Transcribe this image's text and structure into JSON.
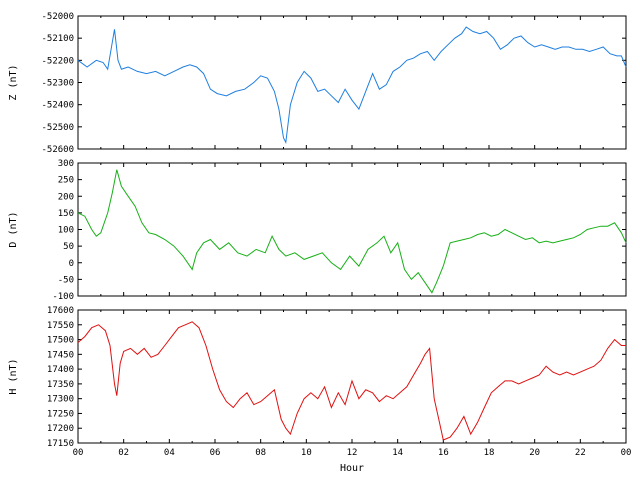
{
  "chart_data": [
    {
      "type": "line",
      "ylabel": "Z (nT)",
      "ylim": [
        -52600,
        -52000
      ],
      "yticks": [
        -52000,
        -52100,
        -52200,
        -52300,
        -52400,
        -52500,
        -52600
      ],
      "xlim": [
        0,
        24
      ],
      "xticks": [
        "00",
        "02",
        "04",
        "06",
        "08",
        "10",
        "12",
        "14",
        "16",
        "18",
        "20",
        "22",
        "00"
      ],
      "color": "#1f7fe0",
      "x": [
        0,
        0.4,
        0.8,
        1.1,
        1.3,
        1.45,
        1.6,
        1.75,
        1.9,
        2.2,
        2.6,
        3.0,
        3.4,
        3.8,
        4.2,
        4.6,
        4.9,
        5.2,
        5.5,
        5.8,
        6.1,
        6.5,
        6.9,
        7.3,
        7.7,
        8.0,
        8.3,
        8.6,
        8.8,
        9.0,
        9.1,
        9.3,
        9.6,
        9.9,
        10.2,
        10.5,
        10.8,
        11.1,
        11.4,
        11.7,
        12.0,
        12.3,
        12.6,
        12.9,
        13.2,
        13.5,
        13.8,
        14.1,
        14.4,
        14.7,
        15.0,
        15.3,
        15.6,
        15.9,
        16.2,
        16.5,
        16.8,
        17.0,
        17.3,
        17.6,
        17.9,
        18.2,
        18.5,
        18.8,
        19.1,
        19.4,
        19.7,
        20.0,
        20.3,
        20.6,
        20.9,
        21.2,
        21.5,
        21.8,
        22.1,
        22.4,
        22.7,
        23.0,
        23.3,
        23.6,
        23.8,
        24.0
      ],
      "values": [
        -52200,
        -52230,
        -52200,
        -52210,
        -52240,
        -52150,
        -52060,
        -52200,
        -52240,
        -52230,
        -52250,
        -52260,
        -52250,
        -52270,
        -52250,
        -52230,
        -52220,
        -52230,
        -52260,
        -52330,
        -52350,
        -52360,
        -52340,
        -52330,
        -52300,
        -52270,
        -52280,
        -52340,
        -52420,
        -52550,
        -52570,
        -52400,
        -52300,
        -52250,
        -52280,
        -52340,
        -52330,
        -52360,
        -52390,
        -52330,
        -52380,
        -52420,
        -52340,
        -52260,
        -52330,
        -52310,
        -52250,
        -52230,
        -52200,
        -52190,
        -52170,
        -52160,
        -52200,
        -52160,
        -52130,
        -52100,
        -52080,
        -52050,
        -52070,
        -52080,
        -52070,
        -52100,
        -52150,
        -52130,
        -52100,
        -52090,
        -52120,
        -52140,
        -52130,
        -52140,
        -52150,
        -52140,
        -52140,
        -52150,
        -52150,
        -52160,
        -52150,
        -52140,
        -52170,
        -52180,
        -52180,
        -52230
      ]
    },
    {
      "type": "line",
      "ylabel": "D (nT)",
      "ylim": [
        -100,
        300
      ],
      "yticks": [
        300,
        250,
        200,
        150,
        100,
        50,
        0,
        -50,
        -100
      ],
      "xlim": [
        0,
        24
      ],
      "xticks": [
        "00",
        "02",
        "04",
        "06",
        "08",
        "10",
        "12",
        "14",
        "16",
        "18",
        "20",
        "22",
        "00"
      ],
      "color": "#17b017",
      "x": [
        0,
        0.3,
        0.6,
        0.8,
        1.0,
        1.3,
        1.5,
        1.7,
        1.9,
        2.2,
        2.5,
        2.8,
        3.1,
        3.4,
        3.8,
        4.2,
        4.6,
        5.0,
        5.2,
        5.5,
        5.8,
        6.2,
        6.6,
        7.0,
        7.4,
        7.8,
        8.2,
        8.5,
        8.8,
        9.1,
        9.5,
        9.9,
        10.3,
        10.7,
        11.1,
        11.5,
        11.9,
        12.3,
        12.7,
        13.1,
        13.4,
        13.7,
        14.0,
        14.3,
        14.6,
        14.9,
        15.2,
        15.5,
        15.7,
        16.0,
        16.3,
        16.6,
        16.9,
        17.2,
        17.5,
        17.8,
        18.1,
        18.4,
        18.7,
        19.0,
        19.3,
        19.6,
        19.9,
        20.2,
        20.5,
        20.8,
        21.1,
        21.4,
        21.7,
        22.0,
        22.3,
        22.6,
        22.9,
        23.2,
        23.5,
        23.8,
        24.0
      ],
      "values": [
        150,
        140,
        100,
        80,
        90,
        150,
        210,
        280,
        230,
        200,
        170,
        120,
        90,
        85,
        70,
        50,
        20,
        -20,
        30,
        60,
        70,
        40,
        60,
        30,
        20,
        40,
        30,
        80,
        40,
        20,
        30,
        10,
        20,
        30,
        0,
        -20,
        20,
        -10,
        40,
        60,
        80,
        30,
        60,
        -20,
        -50,
        -30,
        -60,
        -90,
        -60,
        -10,
        60,
        65,
        70,
        75,
        85,
        90,
        80,
        85,
        100,
        90,
        80,
        70,
        75,
        60,
        65,
        60,
        65,
        70,
        75,
        85,
        100,
        105,
        110,
        110,
        120,
        90,
        60
      ]
    },
    {
      "type": "line",
      "ylabel": "H (nT)",
      "xlabel": "Hour",
      "ylim": [
        17150,
        17600
      ],
      "yticks": [
        17600,
        17550,
        17500,
        17450,
        17400,
        17350,
        17300,
        17250,
        17200,
        17150
      ],
      "xlim": [
        0,
        24
      ],
      "xticks": [
        "00",
        "02",
        "04",
        "06",
        "08",
        "10",
        "12",
        "14",
        "16",
        "18",
        "20",
        "22",
        "00"
      ],
      "color": "#e01010",
      "x": [
        0,
        0.3,
        0.6,
        0.9,
        1.2,
        1.4,
        1.6,
        1.7,
        1.85,
        2.0,
        2.3,
        2.6,
        2.9,
        3.2,
        3.5,
        3.8,
        4.1,
        4.4,
        4.7,
        5.0,
        5.3,
        5.6,
        5.9,
        6.2,
        6.5,
        6.8,
        7.1,
        7.4,
        7.7,
        8.0,
        8.3,
        8.6,
        8.9,
        9.1,
        9.3,
        9.6,
        9.9,
        10.2,
        10.5,
        10.8,
        11.1,
        11.4,
        11.7,
        12.0,
        12.3,
        12.6,
        12.9,
        13.2,
        13.5,
        13.8,
        14.1,
        14.4,
        14.7,
        15.0,
        15.2,
        15.4,
        15.6,
        15.8,
        16.0,
        16.3,
        16.6,
        16.9,
        17.2,
        17.5,
        17.8,
        18.1,
        18.4,
        18.7,
        19.0,
        19.3,
        19.6,
        19.9,
        20.2,
        20.5,
        20.8,
        21.1,
        21.4,
        21.7,
        22.0,
        22.3,
        22.6,
        22.9,
        23.2,
        23.5,
        23.8,
        24.0
      ],
      "values": [
        17490,
        17510,
        17540,
        17550,
        17530,
        17480,
        17350,
        17310,
        17420,
        17460,
        17470,
        17450,
        17470,
        17440,
        17450,
        17480,
        17510,
        17540,
        17550,
        17560,
        17540,
        17480,
        17400,
        17330,
        17290,
        17270,
        17300,
        17320,
        17280,
        17290,
        17310,
        17330,
        17230,
        17200,
        17180,
        17250,
        17300,
        17320,
        17300,
        17340,
        17270,
        17320,
        17280,
        17360,
        17300,
        17330,
        17320,
        17290,
        17310,
        17300,
        17320,
        17340,
        17380,
        17420,
        17450,
        17470,
        17300,
        17230,
        17160,
        17170,
        17200,
        17240,
        17180,
        17220,
        17270,
        17320,
        17340,
        17360,
        17360,
        17350,
        17360,
        17370,
        17380,
        17410,
        17390,
        17380,
        17390,
        17380,
        17390,
        17400,
        17410,
        17430,
        17470,
        17500,
        17480,
        17480
      ]
    }
  ]
}
